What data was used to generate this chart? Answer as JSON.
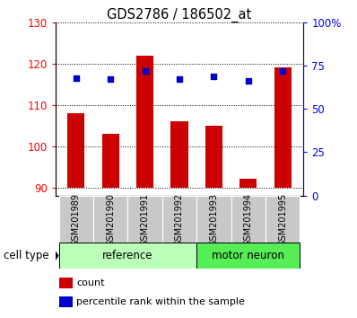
{
  "title": "GDS2786 / 186502_at",
  "categories": [
    "GSM201989",
    "GSM201990",
    "GSM201991",
    "GSM201992",
    "GSM201993",
    "GSM201994",
    "GSM201995"
  ],
  "count_values": [
    108,
    103,
    122,
    106,
    105,
    92,
    119
  ],
  "percentile_values": [
    68,
    67,
    72,
    67,
    69,
    66,
    72
  ],
  "ylim_left": [
    88,
    130
  ],
  "ylim_right": [
    0,
    100
  ],
  "yticks_left": [
    90,
    100,
    110,
    120,
    130
  ],
  "yticks_right": [
    0,
    25,
    50,
    75,
    100
  ],
  "ytick_labels_right": [
    "0",
    "25",
    "50",
    "75",
    "100%"
  ],
  "bar_color": "#cc0000",
  "scatter_color": "#0000cc",
  "group_labels": [
    "reference",
    "motor neuron"
  ],
  "cell_type_label": "cell type",
  "legend_count_label": "count",
  "legend_percentile_label": "percentile rank within the sample",
  "bar_bottom": 90,
  "tick_label_area_color": "#c8c8c8",
  "group_color_reference": "#bbffbb",
  "group_color_motor": "#55ee55"
}
